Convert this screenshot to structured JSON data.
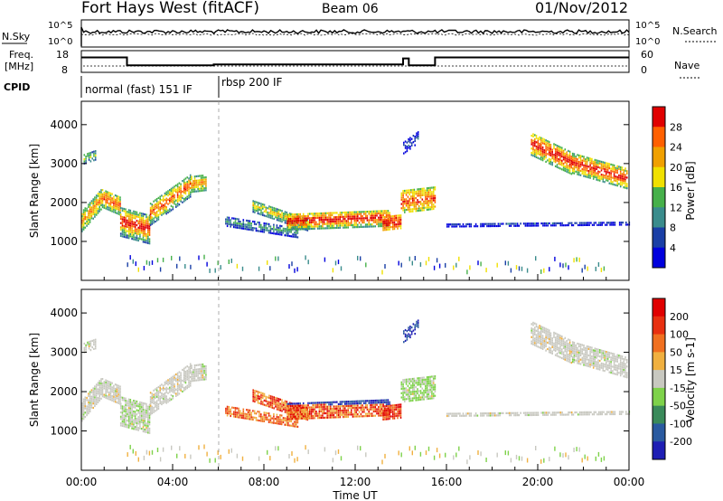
{
  "header": {
    "title": "Fort Hays West (fitACF)",
    "beam": "Beam 06",
    "date": "01/Nov/2012"
  },
  "top_panels": {
    "sky_label": "N.Sky",
    "search_label": "N.Search",
    "sky_ticks": [
      "10^5",
      "10^0"
    ],
    "search_ticks": [
      "10^5",
      "10^0"
    ],
    "freq_label_1": "Freq.",
    "freq_label_2": "[MHz]",
    "freq_ticks": [
      "18",
      "8"
    ],
    "nave_label": "Nave",
    "nave_ticks": [
      "60",
      "0"
    ],
    "cpid_label": "CPID",
    "cpid_segments": [
      {
        "label": "normal (fast) 151 IF",
        "start_hour": 0,
        "end_hour": 6
      },
      {
        "label": "rbsp 200 IF",
        "start_hour": 6,
        "end_hour": 24
      }
    ],
    "freq_steps": [
      {
        "hour": 0,
        "mhz": 15.5
      },
      {
        "hour": 2.0,
        "mhz": 11.5
      },
      {
        "hour": 5.8,
        "mhz": 12.0
      },
      {
        "hour": 14.1,
        "mhz": 15.0
      },
      {
        "hour": 14.35,
        "mhz": 11.5
      },
      {
        "hour": 15.5,
        "mhz": 15.5
      },
      {
        "hour": 24,
        "mhz": 15.5
      }
    ]
  },
  "chart_data": [
    {
      "type": "heatmap",
      "name": "power",
      "ylabel": "Slant Range [km]",
      "ylim": [
        0,
        4600
      ],
      "yticks": [
        1000,
        2000,
        3000,
        4000
      ],
      "xlim": [
        0,
        24
      ],
      "colorbar_label": "Power [dB]",
      "colorbar_ticks": [
        "28",
        "24",
        "20",
        "16",
        "12",
        "8",
        "4"
      ],
      "colors": [
        "#0000dd",
        "#1a3fa6",
        "#3a8c8c",
        "#46b04a",
        "#f0e000",
        "#f0a000",
        "#ff6000",
        "#e00000"
      ]
    },
    {
      "type": "heatmap",
      "name": "velocity",
      "ylabel": "Slant Range [km]",
      "ylim": [
        0,
        4600
      ],
      "yticks": [
        1000,
        2000,
        3000,
        4000
      ],
      "xlim": [
        0,
        24
      ],
      "xlabel": "Time UT",
      "xticks": [
        "00:00",
        "04:00",
        "08:00",
        "12:00",
        "16:00",
        "20:00",
        "00:00"
      ],
      "colorbar_label": "Velocity [m s-1]",
      "colorbar_ticks": [
        "200",
        "100",
        "50",
        "15",
        "-15",
        "-50",
        "-100",
        "-200"
      ],
      "colors": [
        "#1e1eb4",
        "#2a5aa0",
        "#3a8a5a",
        "#7ed24a",
        "#c8c8c0",
        "#f0b040",
        "#f07020",
        "#e83010",
        "#e00000"
      ]
    }
  ]
}
